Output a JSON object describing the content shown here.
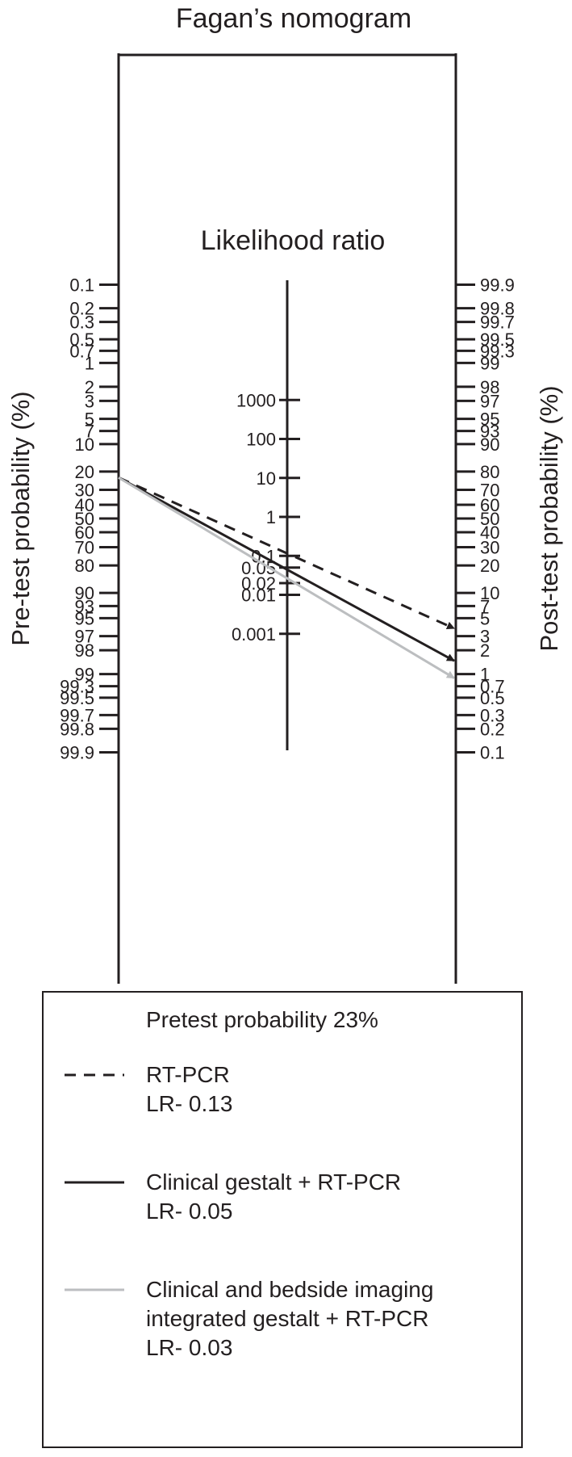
{
  "chart_data": {
    "type": "fagan-nomogram",
    "title": "Fagan’s nomogram",
    "left_axis": {
      "label": "Pre-test probability (%)",
      "ticks": [
        0.1,
        0.2,
        0.3,
        0.5,
        0.7,
        1,
        2,
        3,
        5,
        7,
        10,
        20,
        30,
        40,
        50,
        60,
        70,
        80,
        90,
        93,
        95,
        97,
        98,
        99,
        99.3,
        99.5,
        99.7,
        99.8,
        99.9
      ],
      "tick_labels": [
        "0.1",
        "0.2",
        "0.3",
        "0.5",
        "0.7",
        "1",
        "2",
        "3",
        "5",
        "7",
        "10",
        "20",
        "30",
        "40",
        "50",
        "60",
        "70",
        "80",
        "90",
        "93",
        "95",
        "97",
        "98",
        "99",
        "99.3",
        "99.5",
        "99.7",
        "99.8",
        "99.9"
      ]
    },
    "right_axis": {
      "label": "Post-test probability (%)",
      "ticks": [
        99.9,
        99.8,
        99.7,
        99.5,
        99.3,
        99,
        98,
        97,
        95,
        93,
        90,
        80,
        70,
        60,
        50,
        40,
        30,
        20,
        10,
        7,
        5,
        3,
        2,
        1,
        0.7,
        0.5,
        0.3,
        0.2,
        0.1
      ],
      "tick_labels": [
        "99.9",
        "99.8",
        "99.7",
        "99.5",
        "99.3",
        "99",
        "98",
        "97",
        "95",
        "93",
        "90",
        "80",
        "70",
        "60",
        "50",
        "40",
        "30",
        "20",
        "10",
        "7",
        "5",
        "3",
        "2",
        "1",
        "0.7",
        "0.5",
        "0.3",
        "0.2",
        "0.1"
      ]
    },
    "lr_axis": {
      "label": "Likelihood ratio",
      "ticks": [
        1000,
        100,
        10,
        1,
        0.1,
        0.05,
        0.02,
        0.01,
        0.001
      ],
      "tick_labels": [
        "1000",
        "100",
        "10",
        "1",
        "0.1",
        "0.05",
        "0.02",
        "0.01",
        "0.001"
      ]
    },
    "pretest_probability": 23,
    "series": [
      {
        "name": "RT-PCR",
        "sublabel": "LR- 0.13",
        "lr": 0.13,
        "style": "dashed",
        "color": "#231f20"
      },
      {
        "name": "Clinical gestalt + RT-PCR",
        "sublabel": "LR- 0.05",
        "lr": 0.05,
        "style": "solid",
        "color": "#231f20"
      },
      {
        "name": "Clinical and bedside imaging integrated gestalt + RT-PCR",
        "name_lines": [
          "Clinical and bedside imaging",
          "integrated gestalt + RT-PCR"
        ],
        "sublabel": "LR- 0.03",
        "lr": 0.03,
        "style": "solid",
        "color": "#bcbec0"
      }
    ],
    "legend": {
      "position": "bottom",
      "header": "Pretest probability 23%"
    }
  }
}
